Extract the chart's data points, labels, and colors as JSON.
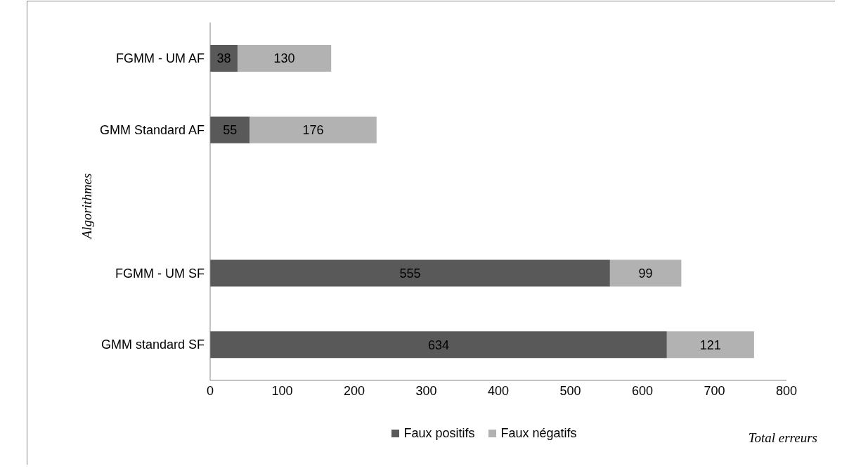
{
  "chart_data": {
    "type": "bar",
    "orientation": "horizontal",
    "stacked": true,
    "xlabel": "Total erreurs",
    "ylabel": "Algorithmes",
    "categories": [
      "FGMM - UM AF",
      "GMM Standard AF",
      null,
      "FGMM - UM SF",
      "GMM standard SF"
    ],
    "series": [
      {
        "name": "Faux positifs",
        "color": "#595959",
        "values": [
          38,
          55,
          null,
          555,
          634
        ]
      },
      {
        "name": "Faux négatifs",
        "color": "#b2b2b2",
        "values": [
          130,
          176,
          null,
          99,
          121
        ]
      }
    ],
    "xlim": [
      0,
      800
    ],
    "xticks": [
      0,
      100,
      200,
      300,
      400,
      500,
      600,
      700,
      800
    ],
    "data_labels": true,
    "legend": "bottom",
    "grid": false
  }
}
